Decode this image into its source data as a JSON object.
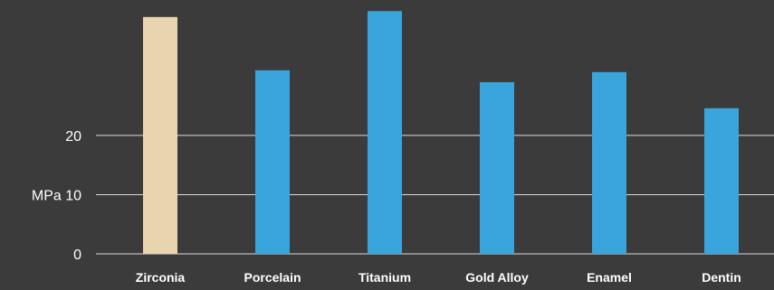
{
  "chart_data": {
    "type": "bar",
    "title": "",
    "xlabel": "",
    "ylabel": "",
    "categories": [
      "Zirconia",
      "Porcelain",
      "Titanium",
      "Gold Alloy",
      "Enamel",
      "Dentin"
    ],
    "values": [
      40,
      31,
      41,
      29,
      30.7,
      24.6
    ],
    "ylim": [
      0,
      41.5
    ],
    "yticks": [
      {
        "value": 0,
        "label": "0"
      },
      {
        "value": 10,
        "label": "MPa 10"
      },
      {
        "value": 20,
        "label": "20"
      }
    ],
    "grid": true,
    "colors": {
      "highlight": "#e8d5b0",
      "bar": "#3aa5dc",
      "background": "#3b3b3b",
      "grid": "#d9d9d9",
      "text": "#ffffff"
    },
    "highlight_index": 0
  }
}
